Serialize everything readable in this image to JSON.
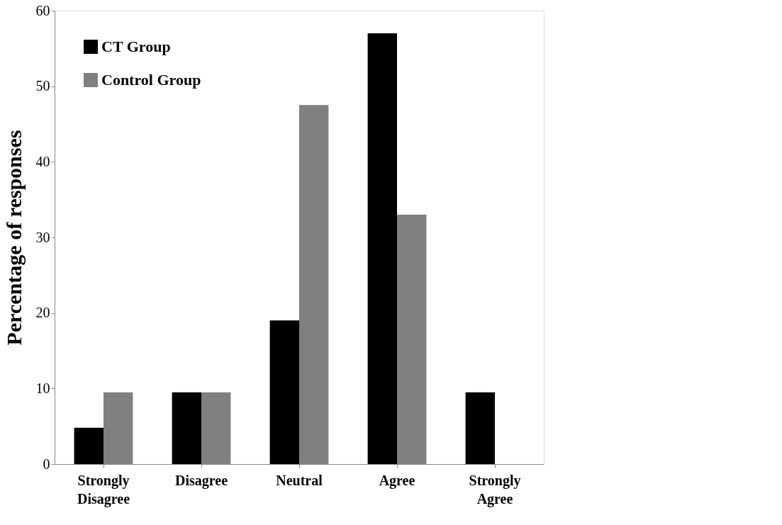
{
  "chart_data": {
    "type": "bar",
    "ylabel": "Percentage of responses",
    "categories": [
      "Strongly Disagree",
      "Disagree",
      "Neutral",
      "Agree",
      "Strongly Agree"
    ],
    "series": [
      {
        "name": "CT Group",
        "color": "#000000",
        "values": [
          4.8,
          9.5,
          19,
          57,
          9.5
        ]
      },
      {
        "name": "Control Group",
        "color": "#808080",
        "values": [
          9.5,
          9.5,
          47.5,
          33,
          0
        ]
      }
    ],
    "ylim": [
      0,
      60
    ],
    "yticks": [
      0,
      10,
      20,
      30,
      40,
      50,
      60
    ],
    "grid": false,
    "legend": "top left"
  }
}
